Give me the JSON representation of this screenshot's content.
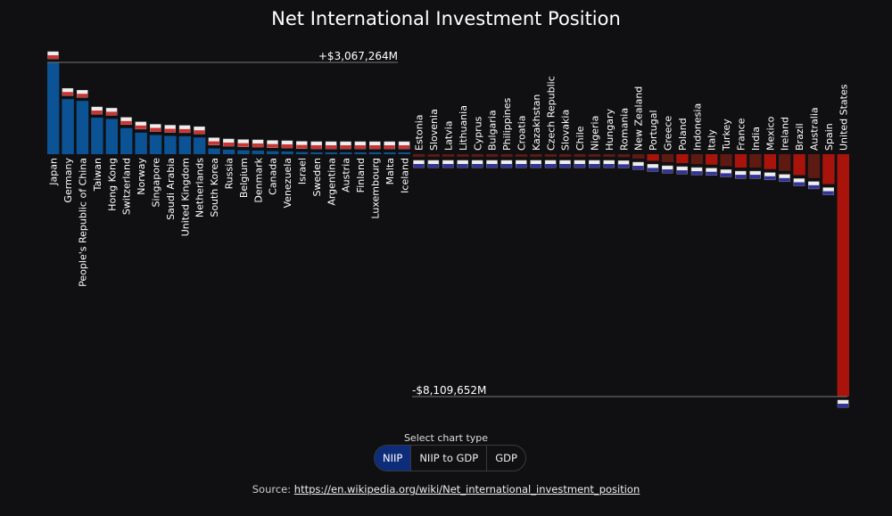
{
  "title": "Net International Investment Position",
  "control": {
    "label": "Select chart type",
    "options": [
      "NIIP",
      "NIIP to GDP",
      "GDP"
    ],
    "selected": "NIIP"
  },
  "source": {
    "prefix": "Source: ",
    "link_text": "https://en.wikipedia.org/wiki/Net_international_investment_position"
  },
  "colors": {
    "positive": "#0b5394",
    "negative_small": "#5c1a12",
    "negative_large": "#a8140c",
    "background": "#101012",
    "segment_active": "#0d2c7a"
  },
  "chart_data": {
    "type": "bar",
    "title": "Net International Investment Position",
    "units": "M",
    "max_label": "+$3,067,264M",
    "min_label": "-$8,109,652M",
    "ylim": [
      -8109652,
      3067264
    ],
    "flag_icons": true,
    "categories": [
      "Japan",
      "Germany",
      "People's Republic of China",
      "Taiwan",
      "Hong Kong",
      "Switzerland",
      "Norway",
      "Singapore",
      "Saudi Arabia",
      "United Kingdom",
      "Netherlands",
      "South Korea",
      "Russia",
      "Belgium",
      "Denmark",
      "Canada",
      "Venezuela",
      "Israel",
      "Sweden",
      "Argentina",
      "Austria",
      "Finland",
      "Luxembourg",
      "Malta",
      "Iceland",
      "Estonia",
      "Slovenia",
      "Latvia",
      "Lithuania",
      "Cyprus",
      "Bulgaria",
      "Philippines",
      "Croatia",
      "Kazakhstan",
      "Czech Republic",
      "Slovakia",
      "Chile",
      "Nigeria",
      "Hungary",
      "Romania",
      "New Zealand",
      "Portugal",
      "Greece",
      "Poland",
      "Indonesia",
      "Italy",
      "Turkey",
      "France",
      "India",
      "Mexico",
      "Ireland",
      "Brazil",
      "Australia",
      "Spain",
      "United States"
    ],
    "values": [
      3067264,
      1840000,
      1780000,
      1220000,
      1180000,
      870000,
      720000,
      640000,
      610000,
      600000,
      560000,
      190000,
      150000,
      130000,
      120000,
      100000,
      90000,
      70000,
      60000,
      40000,
      30000,
      20000,
      15000,
      10000,
      5000,
      -20000,
      -25000,
      -30000,
      -35000,
      -40000,
      -45000,
      -60000,
      -55000,
      -60000,
      -70000,
      -65000,
      -80000,
      -80000,
      -90000,
      -100000,
      -150000,
      -220000,
      -270000,
      -300000,
      -330000,
      -350000,
      -400000,
      -450000,
      -450000,
      -500000,
      -560000,
      -700000,
      -800000,
      -1000000,
      -8109652
    ]
  }
}
